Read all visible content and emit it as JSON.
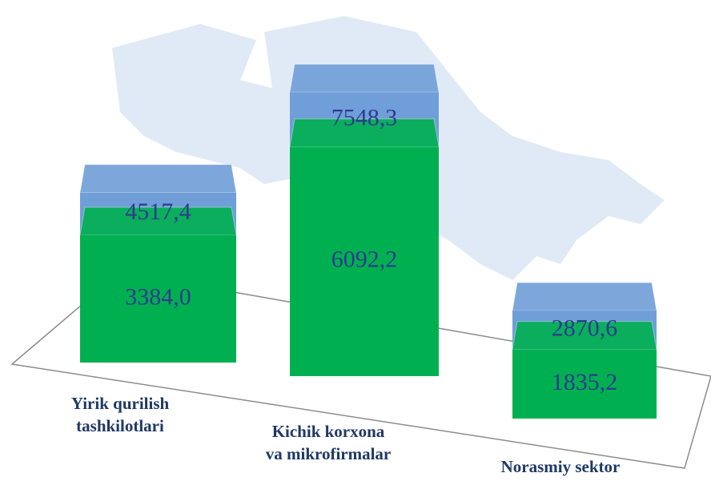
{
  "chart_data": {
    "type": "bar3d",
    "categories": [
      [
        "Yirik qurilish",
        "tashkilotlari"
      ],
      [
        "Kichik korxona",
        "va mikrofirmalar"
      ],
      [
        "Norasmiy sektor"
      ]
    ],
    "series": [
      {
        "color": "#6f9ed8",
        "values": [
          4517.4,
          7548.3,
          2870.6
        ],
        "value_labels": [
          "4517,4",
          "7548,3",
          "2870,6"
        ]
      },
      {
        "color": "#00b050",
        "values": [
          3384.0,
          6092.2,
          1835.2
        ],
        "value_labels": [
          "3384,0",
          "6092,2",
          "1835,2"
        ]
      }
    ]
  }
}
